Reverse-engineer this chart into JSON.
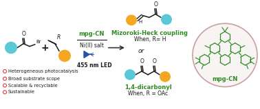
{
  "background_color": "#ffffff",
  "cyan_color": "#5BC8D8",
  "orange_color": "#F5A623",
  "green_color": "#2E8B22",
  "dark_color": "#1a1a1a",
  "red_bullet_color": "#D94040",
  "arrow_color": "#555555",
  "circle_border_color": "#C8A0A0",
  "circle_fill_color": "#F8F4F4",
  "bullet_texts": [
    "Heterogeneous photocatalysis",
    "Broad substrate scope",
    "Scalable & recyclable",
    "Sustainable"
  ],
  "label_mpgcn": "mpg-CN",
  "label_nickel": "Ni(II) salt",
  "label_led": "455 nm LED",
  "label_heck": "Mizoroki-Heck coupling",
  "label_heck_cond": "When, R= H",
  "label_or": "or",
  "label_dicarb": "1,4-dicarbonyl",
  "label_dicarb_cond": "When, R = OAc",
  "label_mpgcn_circle": "mpg-CN"
}
